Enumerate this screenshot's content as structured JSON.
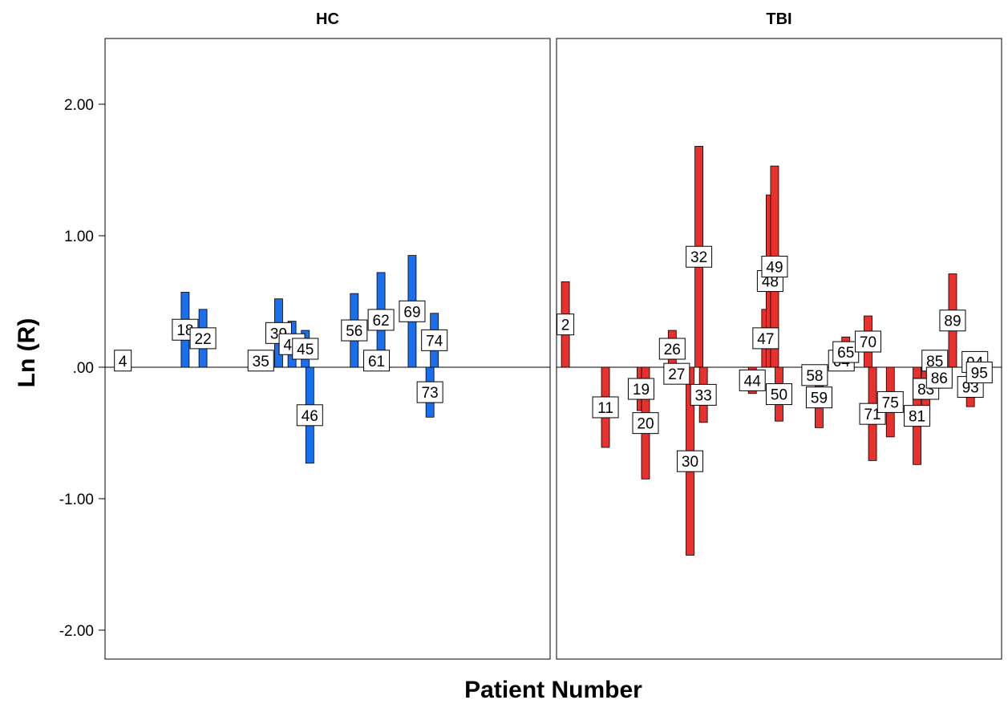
{
  "chart_data": {
    "type": "bar",
    "xlabel": "Patient Number",
    "ylabel": "Ln (R)",
    "ylim": [
      -2.22,
      2.5
    ],
    "yticks": [
      {
        "value": 2,
        "label": "2.00"
      },
      {
        "value": 1,
        "label": "1.00"
      },
      {
        "value": 0,
        "label": ".00"
      },
      {
        "value": -1,
        "label": "-1.00"
      },
      {
        "value": -2,
        "label": "-2.00"
      }
    ],
    "grid": false,
    "reference_line": 0,
    "panels": [
      {
        "title": "HC",
        "color": "#1a6fef",
        "xlim": [
          0,
          100
        ],
        "bars": [
          {
            "patient": "4",
            "x": 4,
            "value": 0.0
          },
          {
            "patient": "18",
            "x": 18,
            "value": 0.57
          },
          {
            "patient": "22",
            "x": 22,
            "value": 0.44
          },
          {
            "patient": "35",
            "x": 35,
            "value": 0.03
          },
          {
            "patient": "39",
            "x": 39,
            "value": 0.52
          },
          {
            "patient": "42",
            "x": 42,
            "value": 0.35
          },
          {
            "patient": "45",
            "x": 45,
            "value": 0.28
          },
          {
            "patient": "46",
            "x": 46,
            "value": -0.73
          },
          {
            "patient": "56",
            "x": 56,
            "value": 0.56
          },
          {
            "patient": "61",
            "x": 61,
            "value": 0.03
          },
          {
            "patient": "62",
            "x": 62,
            "value": 0.72
          },
          {
            "patient": "69",
            "x": 69,
            "value": 0.85
          },
          {
            "patient": "73",
            "x": 73,
            "value": -0.38
          },
          {
            "patient": "74",
            "x": 74,
            "value": 0.41
          }
        ]
      },
      {
        "title": "TBI",
        "color": "#e8302c",
        "xlim": [
          0,
          100
        ],
        "bars": [
          {
            "patient": "2",
            "x": 2,
            "value": 0.65
          },
          {
            "patient": "11",
            "x": 11,
            "value": -0.61
          },
          {
            "patient": "19",
            "x": 19,
            "value": -0.33
          },
          {
            "patient": "20",
            "x": 20,
            "value": -0.85
          },
          {
            "patient": "26",
            "x": 26,
            "value": 0.28
          },
          {
            "patient": "27",
            "x": 27,
            "value": -0.1
          },
          {
            "patient": "30",
            "x": 30,
            "value": -1.43
          },
          {
            "patient": "32",
            "x": 32,
            "value": 1.68
          },
          {
            "patient": "33",
            "x": 33,
            "value": -0.42
          },
          {
            "patient": "44",
            "x": 44,
            "value": -0.2
          },
          {
            "patient": "47",
            "x": 47,
            "value": 0.44
          },
          {
            "patient": "48",
            "x": 48,
            "value": 1.31
          },
          {
            "patient": "49",
            "x": 49,
            "value": 1.53
          },
          {
            "patient": "50",
            "x": 50,
            "value": -0.41
          },
          {
            "patient": "58",
            "x": 58,
            "value": -0.12
          },
          {
            "patient": "59",
            "x": 59,
            "value": -0.46
          },
          {
            "patient": "64",
            "x": 64,
            "value": 0.0
          },
          {
            "patient": "65",
            "x": 65,
            "value": 0.23
          },
          {
            "patient": "70",
            "x": 70,
            "value": 0.39
          },
          {
            "patient": "71",
            "x": 71,
            "value": -0.71
          },
          {
            "patient": "75",
            "x": 75,
            "value": -0.53
          },
          {
            "patient": "81",
            "x": 81,
            "value": -0.74
          },
          {
            "patient": "83",
            "x": 83,
            "value": -0.33
          },
          {
            "patient": "85",
            "x": 85,
            "value": -0.04
          },
          {
            "patient": "86",
            "x": 86,
            "value": -0.16
          },
          {
            "patient": "89",
            "x": 89,
            "value": 0.71
          },
          {
            "patient": "93",
            "x": 93,
            "value": -0.3
          },
          {
            "patient": "94",
            "x": 94,
            "value": 0.08
          },
          {
            "patient": "95",
            "x": 95,
            "value": -0.08
          }
        ]
      }
    ]
  }
}
